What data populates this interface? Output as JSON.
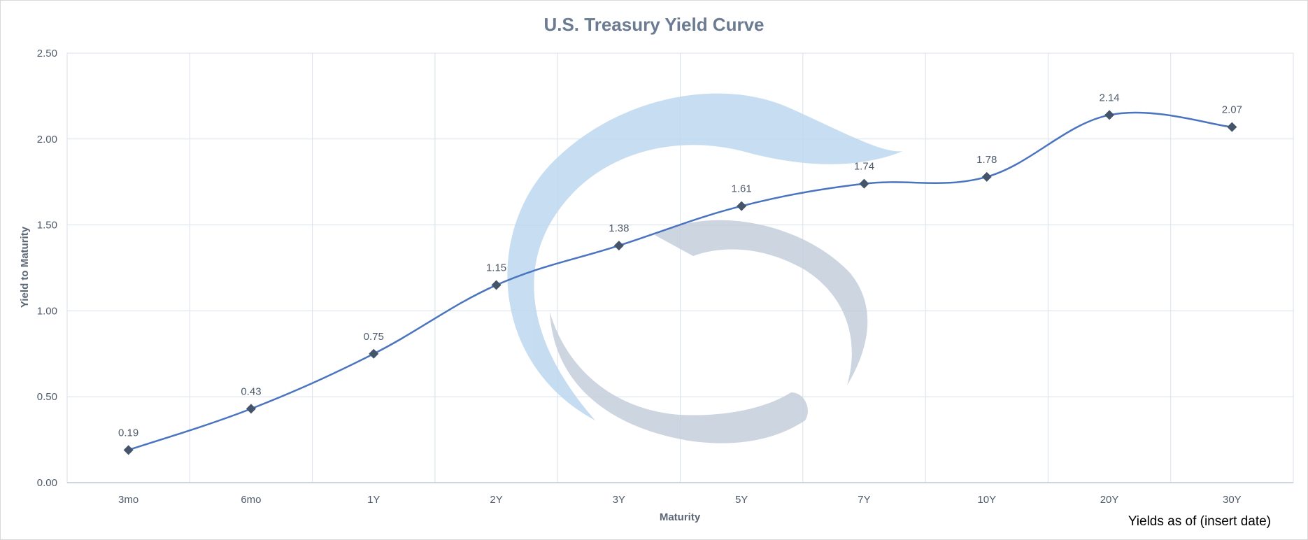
{
  "chart_data": {
    "type": "line",
    "title": "U.S. Treasury Yield Curve",
    "xlabel": "Maturity",
    "ylabel": "Yield to Maturity",
    "categories": [
      "3mo",
      "6mo",
      "1Y",
      "2Y",
      "3Y",
      "5Y",
      "7Y",
      "10Y",
      "20Y",
      "30Y"
    ],
    "series": [
      {
        "values": [
          0.19,
          0.43,
          0.75,
          1.15,
          1.38,
          1.61,
          1.74,
          1.78,
          2.14,
          2.07
        ],
        "data_labels": [
          "0.19",
          "0.43",
          "0.75",
          "1.15",
          "1.38",
          "1.61",
          "1.74",
          "1.78",
          "2.14",
          "2.07"
        ]
      }
    ],
    "ylim": [
      0,
      2.5
    ],
    "yticks": [
      "0.00",
      "0.50",
      "1.00",
      "1.50",
      "2.00",
      "2.50"
    ],
    "grid": true,
    "smooth": true,
    "marker": "diamond",
    "legend": "none"
  },
  "footnote": "Yields as of (insert date)",
  "colors": {
    "line": "#4a74c0",
    "marker": "#44546a",
    "grid": "#d9e1ea",
    "watermark_blue": "#bdd7ee",
    "watermark_gray": "#adb9ca"
  },
  "icons": {
    "watermark": "company-logo-watermark"
  }
}
